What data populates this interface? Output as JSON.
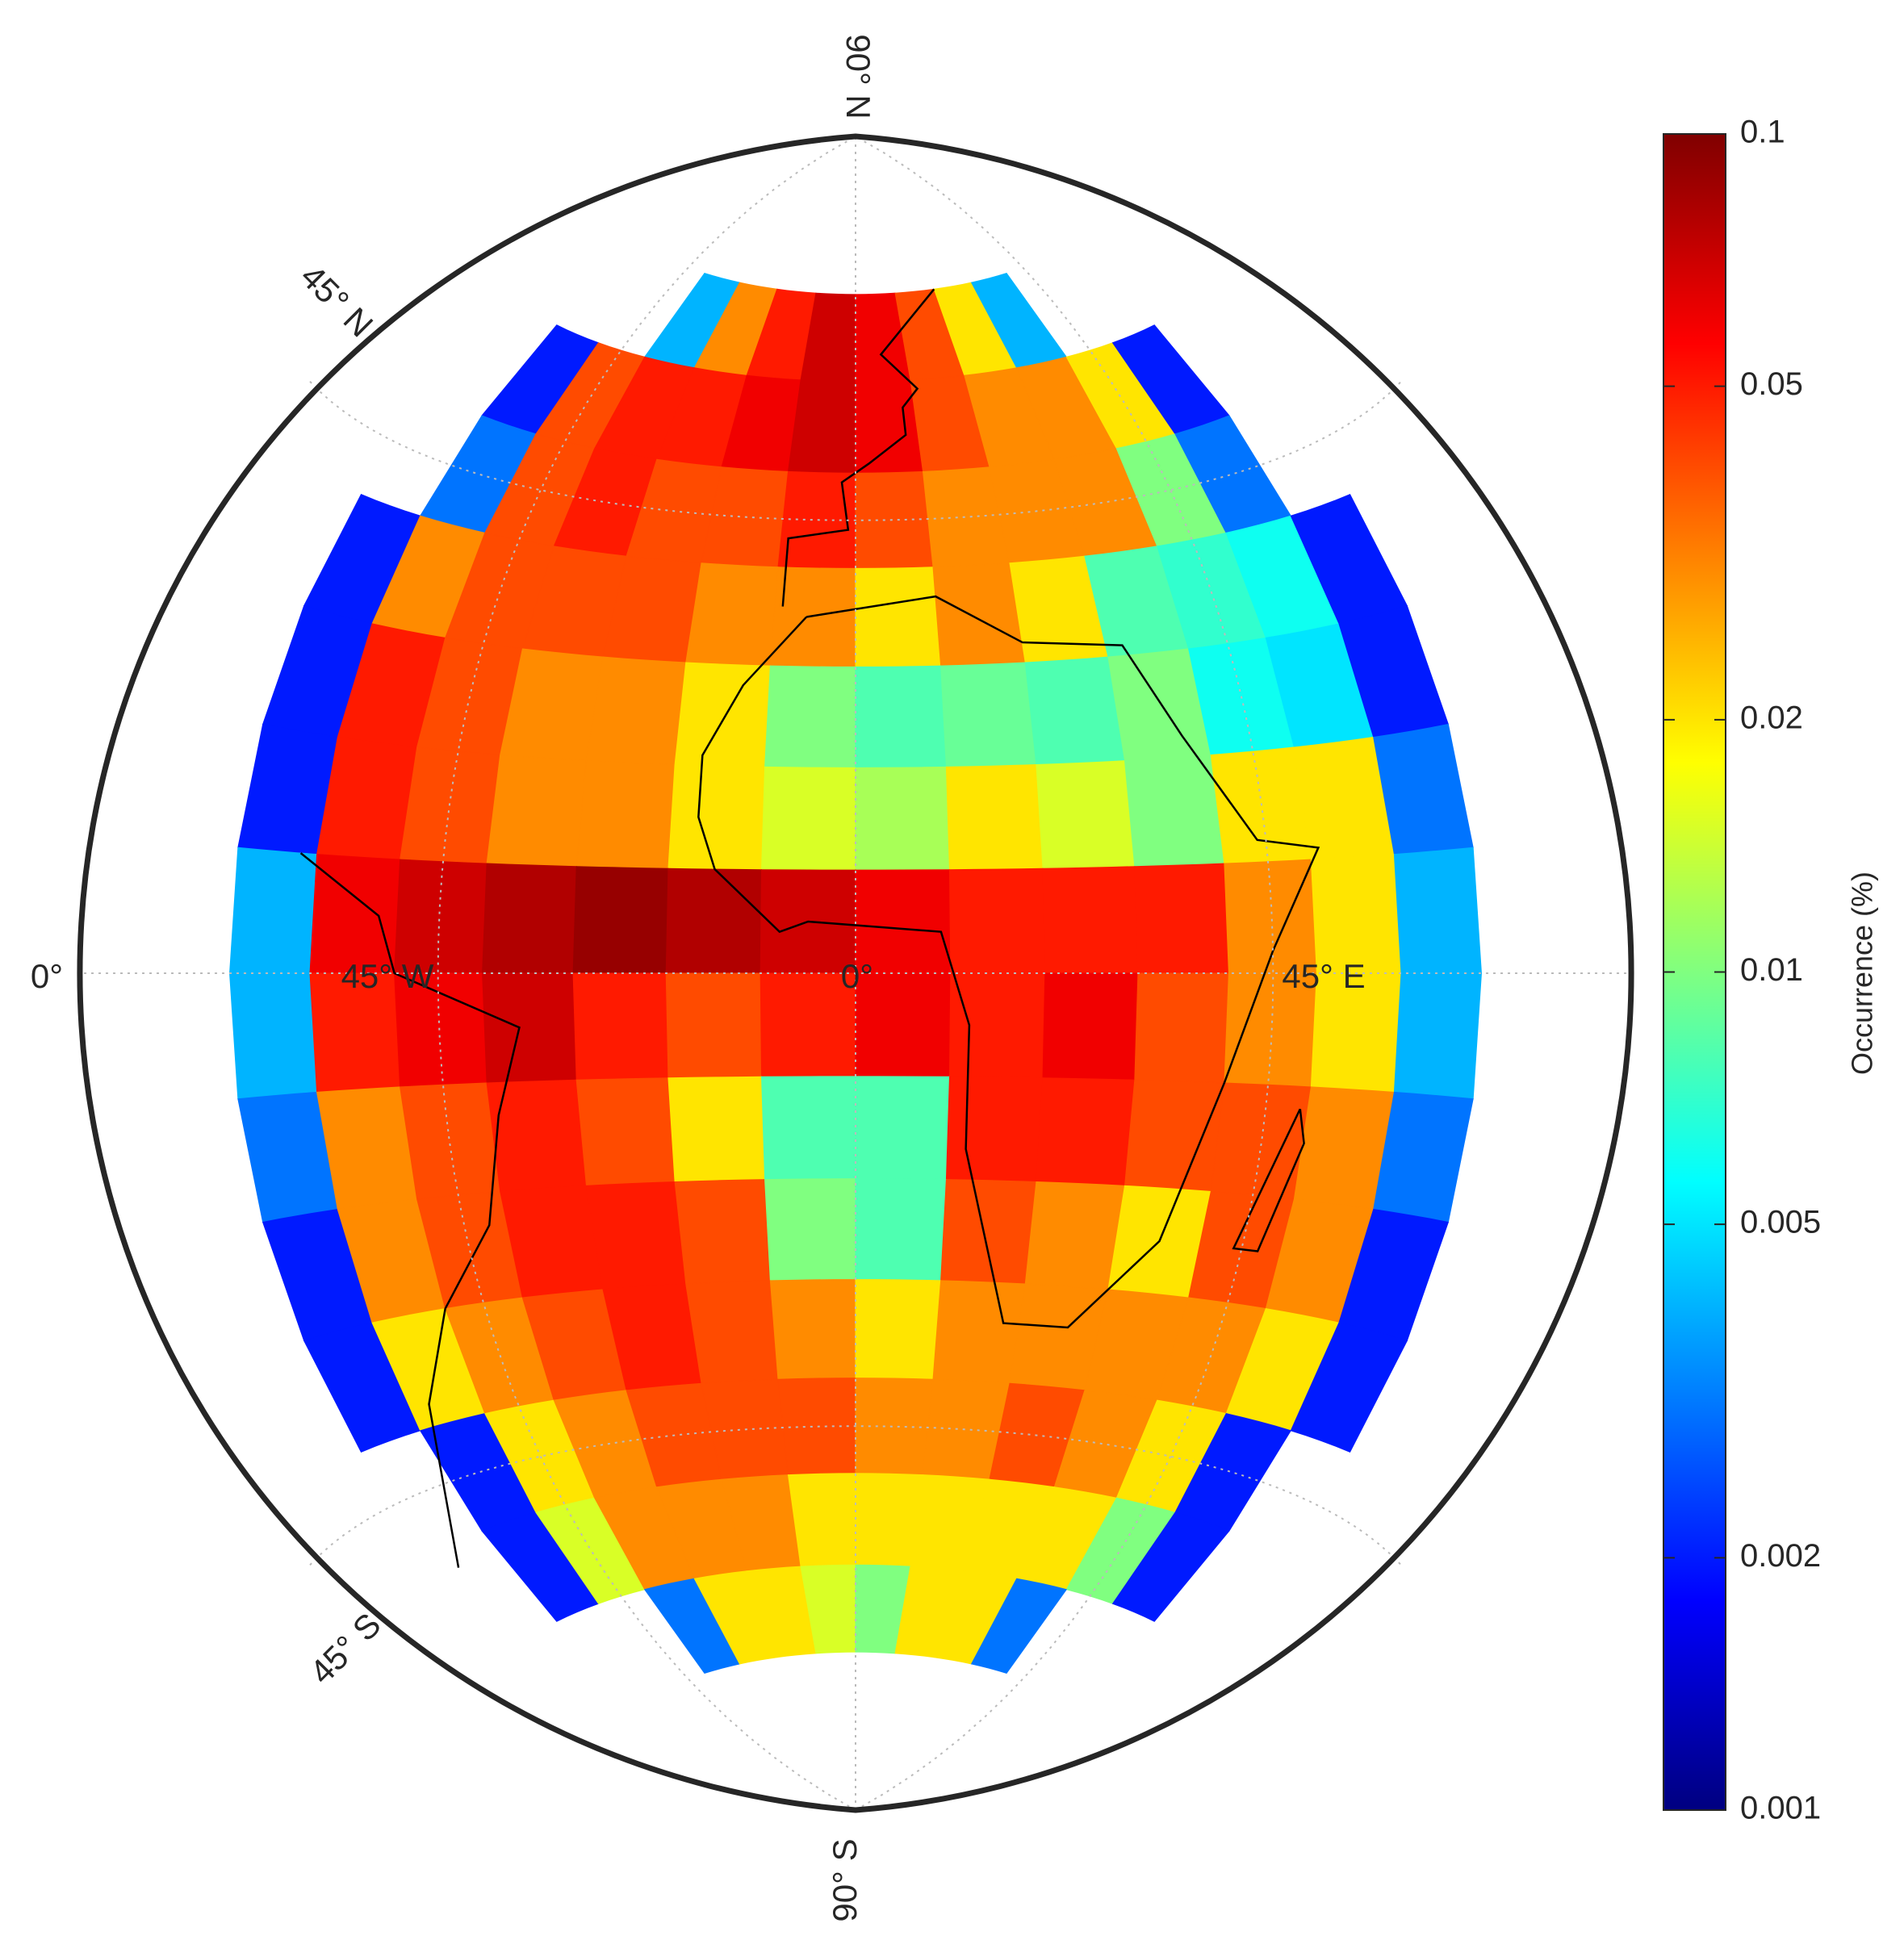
{
  "map": {
    "type": "heatmap",
    "lat": [
      65,
      55,
      45,
      35,
      25,
      15,
      5,
      -5,
      -15,
      -25,
      -35,
      -45,
      -55,
      -65
    ],
    "lon": [
      -65,
      -55,
      -45,
      -35,
      -25,
      -15,
      -5,
      5,
      15,
      25,
      35,
      45,
      55,
      65
    ],
    "cell_size": 10,
    "values": [
      [
        null,
        null,
        null,
        0.004,
        0.03,
        0.05,
        0.07,
        0.06,
        0.04,
        0.02,
        0.004,
        null,
        null,
        null
      ],
      [
        null,
        0.002,
        0.04,
        0.05,
        0.05,
        0.06,
        0.07,
        0.06,
        0.04,
        0.03,
        0.03,
        0.02,
        0.002,
        null
      ],
      [
        null,
        0.003,
        0.04,
        0.05,
        0.04,
        0.04,
        0.05,
        0.04,
        0.03,
        0.03,
        0.03,
        0.01,
        0.003,
        null
      ],
      [
        0.002,
        0.03,
        0.04,
        0.04,
        0.04,
        0.03,
        0.03,
        0.02,
        0.03,
        0.02,
        0.008,
        0.007,
        0.006,
        0.002
      ],
      [
        0.002,
        0.05,
        0.04,
        0.03,
        0.03,
        0.02,
        0.01,
        0.008,
        0.009,
        0.008,
        0.01,
        0.006,
        0.005,
        0.002
      ],
      [
        0.002,
        0.05,
        0.04,
        0.03,
        0.03,
        0.02,
        0.015,
        0.012,
        0.02,
        0.015,
        0.01,
        0.02,
        0.02,
        0.003
      ],
      [
        0.004,
        0.06,
        0.07,
        0.08,
        0.09,
        0.08,
        0.07,
        0.06,
        0.05,
        0.05,
        0.05,
        0.03,
        0.02,
        0.004
      ],
      [
        0.004,
        0.05,
        0.06,
        0.07,
        0.05,
        0.04,
        0.05,
        0.06,
        0.05,
        0.06,
        0.04,
        0.03,
        0.02,
        0.004
      ],
      [
        0.003,
        0.03,
        0.04,
        0.05,
        0.04,
        0.02,
        0.008,
        0.008,
        0.05,
        0.05,
        0.04,
        0.04,
        0.03,
        0.003
      ],
      [
        0.002,
        0.03,
        0.04,
        0.05,
        0.05,
        0.04,
        0.01,
        0.008,
        0.04,
        0.03,
        0.02,
        0.04,
        0.03,
        0.002
      ],
      [
        0.002,
        0.02,
        0.03,
        0.04,
        0.05,
        0.04,
        0.03,
        0.02,
        0.03,
        0.03,
        0.03,
        0.03,
        0.02,
        0.002
      ],
      [
        null,
        0.002,
        0.02,
        0.03,
        0.04,
        0.04,
        0.04,
        0.03,
        0.03,
        0.04,
        0.03,
        0.02,
        0.002,
        null
      ],
      [
        null,
        0.002,
        0.015,
        0.03,
        0.03,
        0.03,
        0.02,
        0.02,
        0.02,
        0.02,
        0.02,
        0.01,
        0.002,
        null
      ],
      [
        null,
        null,
        null,
        0.003,
        0.02,
        0.02,
        0.015,
        0.01,
        0.02,
        0.02,
        0.003,
        null,
        null,
        null
      ]
    ],
    "colormap": "jet",
    "grid": true,
    "grid_labels": [
      "90° N",
      "45° N",
      "0°",
      "45° W",
      "0°",
      "45° E",
      "45° S",
      "90° S"
    ],
    "colorbar": {
      "label": "Occurrence (%)",
      "scale": "log",
      "lim": [
        0.001,
        0.1
      ],
      "ticks": [
        0.001,
        0.002,
        0.005,
        0.01,
        0.02,
        0.05,
        0.1
      ]
    }
  }
}
